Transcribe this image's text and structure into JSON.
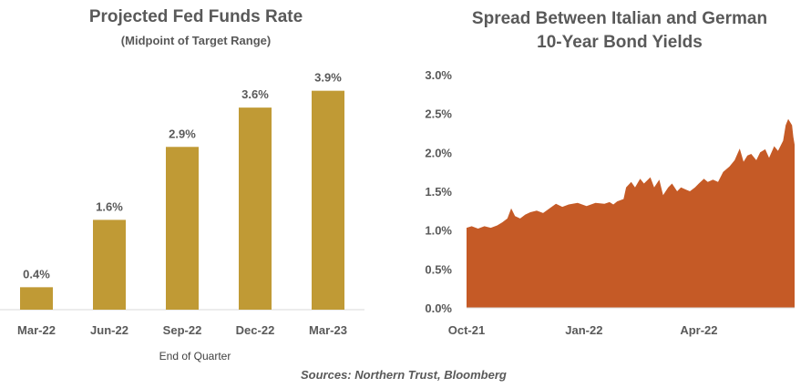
{
  "chart_data": [
    {
      "type": "bar",
      "title": "Projected Fed Funds Rate",
      "subtitle": "(Midpoint of Target Range)",
      "xlabel": "End of Quarter",
      "categories": [
        "Mar-22",
        "Jun-22",
        "Sep-22",
        "Dec-22",
        "Mar-23"
      ],
      "values": [
        0.4,
        1.6,
        2.9,
        3.6,
        3.9
      ],
      "data_labels": [
        "0.4%",
        "1.6%",
        "2.9%",
        "3.6%",
        "3.9%"
      ],
      "ylim": [
        0,
        4.3
      ],
      "bar_color": "#C09A35",
      "grid": false,
      "legend": "none"
    },
    {
      "type": "area",
      "title_lines": [
        "Spread Between Italian and German",
        "10-Year Bond Yields"
      ],
      "ylim": [
        0,
        3.0
      ],
      "yticks": [
        0,
        0.5,
        1.0,
        1.5,
        2.0,
        2.5,
        3.0
      ],
      "ytick_labels": [
        "0.0%",
        "0.5%",
        "1.0%",
        "1.5%",
        "2.0%",
        "2.5%",
        "3.0%"
      ],
      "xlim": [
        "2021-10-01",
        "2022-06-15"
      ],
      "xticks": [
        "2021-10-01",
        "2022-01-01",
        "2022-04-01"
      ],
      "xtick_labels": [
        "Oct-21",
        "Jan-22",
        "Apr-22"
      ],
      "fill_color": "#C55A26",
      "grid": false,
      "legend": "none",
      "series": [
        {
          "x": [
            "2021-10-01",
            "2021-10-05",
            "2021-10-10",
            "2021-10-15",
            "2021-10-20",
            "2021-10-25",
            "2021-10-29",
            "2021-11-02",
            "2021-11-05",
            "2021-11-08",
            "2021-11-12",
            "2021-11-16",
            "2021-11-20",
            "2021-11-25",
            "2021-11-30",
            "2021-12-05",
            "2021-12-10",
            "2021-12-15",
            "2021-12-20",
            "2021-12-27",
            "2022-01-03",
            "2022-01-10",
            "2022-01-17",
            "2022-01-21",
            "2022-01-24",
            "2022-01-27",
            "2022-02-01",
            "2022-02-03",
            "2022-02-07",
            "2022-02-10",
            "2022-02-14",
            "2022-02-17",
            "2022-02-22",
            "2022-02-25",
            "2022-03-01",
            "2022-03-04",
            "2022-03-08",
            "2022-03-11",
            "2022-03-15",
            "2022-03-18",
            "2022-03-22",
            "2022-03-25",
            "2022-03-29",
            "2022-04-01",
            "2022-04-05",
            "2022-04-08",
            "2022-04-12",
            "2022-04-16",
            "2022-04-20",
            "2022-04-25",
            "2022-04-29",
            "2022-05-03",
            "2022-05-06",
            "2022-05-09",
            "2022-05-12",
            "2022-05-16",
            "2022-05-19",
            "2022-05-23",
            "2022-05-26",
            "2022-05-30",
            "2022-06-02",
            "2022-06-06",
            "2022-06-08",
            "2022-06-10",
            "2022-06-13",
            "2022-06-14",
            "2022-06-15"
          ],
          "values": [
            1.03,
            1.05,
            1.02,
            1.05,
            1.03,
            1.06,
            1.1,
            1.15,
            1.28,
            1.18,
            1.15,
            1.2,
            1.23,
            1.25,
            1.22,
            1.28,
            1.34,
            1.3,
            1.33,
            1.35,
            1.31,
            1.35,
            1.34,
            1.36,
            1.33,
            1.37,
            1.4,
            1.55,
            1.62,
            1.55,
            1.66,
            1.6,
            1.68,
            1.55,
            1.65,
            1.45,
            1.55,
            1.6,
            1.5,
            1.55,
            1.52,
            1.5,
            1.55,
            1.6,
            1.66,
            1.62,
            1.65,
            1.62,
            1.75,
            1.82,
            1.9,
            2.05,
            1.88,
            1.96,
            1.98,
            1.9,
            2.0,
            2.04,
            1.93,
            2.08,
            2.02,
            2.15,
            2.35,
            2.43,
            2.35,
            2.2,
            2.1
          ]
        }
      ]
    }
  ],
  "source": "Sources: Northern Trust, Bloomberg"
}
